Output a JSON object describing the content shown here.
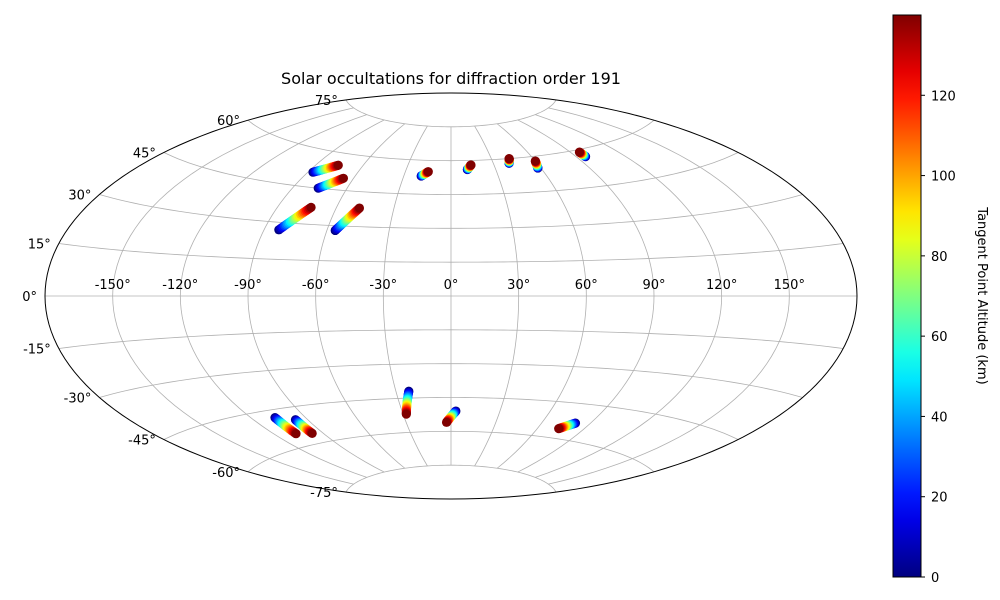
{
  "chart_data": {
    "type": "scatter",
    "projection": "aitoff",
    "title": "Solar occultations for diffraction order 191",
    "x_ticks": [
      "-150°",
      "-120°",
      "-90°",
      "-60°",
      "-30°",
      "0°",
      "30°",
      "60°",
      "90°",
      "120°",
      "150°"
    ],
    "x_tick_values": [
      -150,
      -120,
      -90,
      -60,
      -30,
      0,
      30,
      60,
      90,
      120,
      150
    ],
    "y_ticks": [
      "-75°",
      "-60°",
      "-45°",
      "-30°",
      "-15°",
      "0°",
      "15°",
      "30°",
      "45°",
      "60°",
      "75°"
    ],
    "y_tick_values": [
      -75,
      -60,
      -45,
      -30,
      -15,
      0,
      15,
      30,
      45,
      60,
      75
    ],
    "grid": true,
    "colorbar": {
      "label": "Tangent Point Altitude (km)",
      "colormap": "jet",
      "range": [
        0,
        140
      ],
      "ticks": [
        "0",
        "20",
        "40",
        "60",
        "80",
        "100",
        "120"
      ],
      "tick_values": [
        0,
        20,
        40,
        60,
        80,
        100,
        120
      ]
    },
    "tracks": [
      {
        "start": {
          "lon": -87,
          "lat": 51
        },
        "end": {
          "lon": -76,
          "lat": 55
        }
      },
      {
        "start": {
          "lon": -76,
          "lat": 45
        },
        "end": {
          "lon": -66,
          "lat": 50
        }
      },
      {
        "start": {
          "lon": -83,
          "lat": 27
        },
        "end": {
          "lon": -73,
          "lat": 37
        }
      },
      {
        "start": {
          "lon": -56,
          "lat": 28
        },
        "end": {
          "lon": -48,
          "lat": 38
        }
      },
      {
        "start": {
          "lon": -19,
          "lat": 53
        },
        "end": {
          "lon": -15,
          "lat": 55
        }
      },
      {
        "start": {
          "lon": 11,
          "lat": 56
        },
        "end": {
          "lon": 14,
          "lat": 58
        }
      },
      {
        "start": {
          "lon": 41,
          "lat": 58
        },
        "end": {
          "lon": 43,
          "lat": 60
        }
      },
      {
        "start": {
          "lon": 58,
          "lat": 55
        },
        "end": {
          "lon": 60,
          "lat": 58
        }
      },
      {
        "start": {
          "lon": 96,
          "lat": 57
        },
        "end": {
          "lon": 96,
          "lat": 59
        }
      },
      {
        "start": {
          "lon": -107,
          "lat": -48
        },
        "end": {
          "lon": -107,
          "lat": -55
        }
      },
      {
        "start": {
          "lon": -97,
          "lat": -50
        },
        "end": {
          "lon": -97,
          "lat": -56
        }
      },
      {
        "start": {
          "lon": -23,
          "lat": -42
        },
        "end": {
          "lon": -28,
          "lat": -52
        }
      },
      {
        "start": {
          "lon": 3,
          "lat": -51
        },
        "end": {
          "lon": -3,
          "lat": -56
        }
      },
      {
        "start": {
          "lon": 81,
          "lat": -53
        },
        "end": {
          "lon": 74,
          "lat": -56
        }
      }
    ]
  }
}
